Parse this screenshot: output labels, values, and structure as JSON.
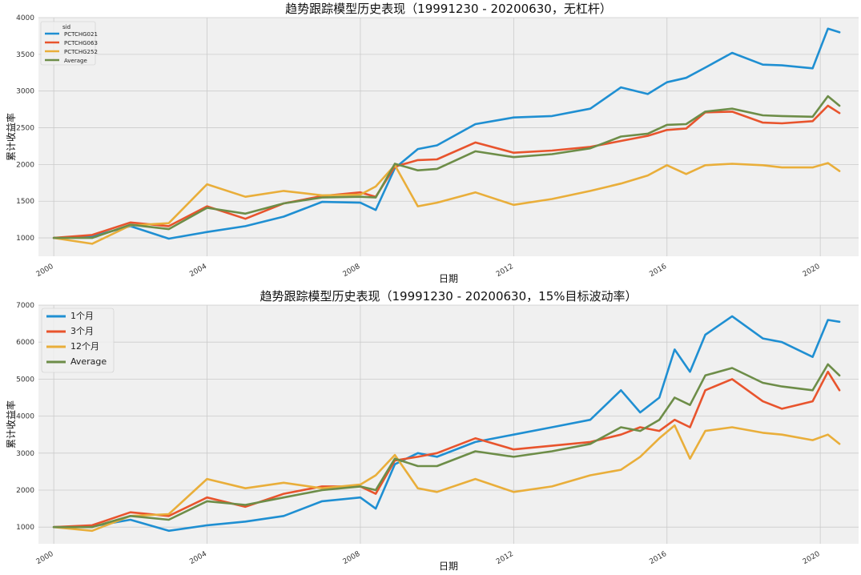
{
  "chart_data": [
    {
      "type": "line",
      "title": "趋势跟踪模型历史表现（19991230 - 20200630，无杠杆）",
      "xlabel": "日期",
      "ylabel": "累计收益率",
      "xlim": [
        1999.6,
        2021.0
      ],
      "ylim": [
        750,
        4000
      ],
      "yticks": [
        1000,
        1500,
        2000,
        2500,
        3000,
        3500,
        4000
      ],
      "xticks": [
        "2000",
        "2004",
        "2008",
        "2012",
        "2016",
        "2020"
      ],
      "grid": true,
      "legend": {
        "title": "sid",
        "placement": "top-left",
        "size": "small"
      },
      "series": [
        {
          "name": "PCTCHG021",
          "color": "#1f8fd2",
          "x": [
            2000.0,
            2001.0,
            2002.0,
            2003.0,
            2004.0,
            2005.0,
            2006.0,
            2007.0,
            2008.0,
            2008.4,
            2008.9,
            2009.5,
            2010.0,
            2011.0,
            2012.0,
            2013.0,
            2014.0,
            2014.8,
            2015.5,
            2016.0,
            2016.5,
            2017.0,
            2017.7,
            2018.5,
            2019.0,
            2019.8,
            2020.2,
            2020.5
          ],
          "values": [
            1000,
            1020,
            1160,
            990,
            1080,
            1160,
            1290,
            1490,
            1480,
            1380,
            1950,
            2210,
            2260,
            2550,
            2640,
            2660,
            2760,
            3050,
            2960,
            3120,
            3180,
            3320,
            3520,
            3360,
            3350,
            3310,
            3850,
            3800
          ]
        },
        {
          "name": "PCTCHG063",
          "color": "#e8542d",
          "x": [
            2000.0,
            2001.0,
            2002.0,
            2003.0,
            2004.0,
            2005.0,
            2006.0,
            2007.0,
            2008.0,
            2008.4,
            2008.9,
            2009.5,
            2010.0,
            2011.0,
            2012.0,
            2013.0,
            2014.0,
            2014.8,
            2015.5,
            2016.0,
            2016.5,
            2017.0,
            2017.7,
            2018.5,
            2019.0,
            2019.8,
            2020.2,
            2020.5
          ],
          "values": [
            1000,
            1040,
            1210,
            1160,
            1430,
            1260,
            1470,
            1570,
            1620,
            1560,
            1970,
            2060,
            2070,
            2300,
            2160,
            2190,
            2240,
            2320,
            2390,
            2470,
            2490,
            2710,
            2720,
            2570,
            2560,
            2590,
            2800,
            2700
          ]
        },
        {
          "name": "PCTCHG252",
          "color": "#e9ae3a",
          "x": [
            2000.0,
            2001.0,
            2002.0,
            2003.0,
            2004.0,
            2005.0,
            2006.0,
            2007.0,
            2008.0,
            2008.4,
            2008.9,
            2009.5,
            2010.0,
            2011.0,
            2012.0,
            2013.0,
            2014.0,
            2014.8,
            2015.5,
            2016.0,
            2016.5,
            2017.0,
            2017.7,
            2018.5,
            2019.0,
            2019.8,
            2020.2,
            2020.5
          ],
          "values": [
            1000,
            920,
            1170,
            1200,
            1730,
            1560,
            1640,
            1580,
            1590,
            1700,
            1990,
            1430,
            1480,
            1620,
            1450,
            1530,
            1640,
            1740,
            1850,
            1990,
            1870,
            1990,
            2010,
            1990,
            1960,
            1960,
            2020,
            1910
          ]
        },
        {
          "name": "Average",
          "color": "#6d8d48",
          "x": [
            2000.0,
            2001.0,
            2002.0,
            2003.0,
            2004.0,
            2005.0,
            2006.0,
            2007.0,
            2008.0,
            2008.4,
            2008.9,
            2009.5,
            2010.0,
            2011.0,
            2012.0,
            2013.0,
            2014.0,
            2014.8,
            2015.5,
            2016.0,
            2016.5,
            2017.0,
            2017.7,
            2018.5,
            2019.0,
            2019.8,
            2020.2,
            2020.5
          ],
          "values": [
            1000,
            1000,
            1180,
            1120,
            1410,
            1330,
            1470,
            1550,
            1560,
            1550,
            2010,
            1920,
            1940,
            2180,
            2100,
            2140,
            2220,
            2380,
            2420,
            2540,
            2550,
            2720,
            2760,
            2670,
            2660,
            2650,
            2930,
            2800
          ]
        }
      ]
    },
    {
      "type": "line",
      "title": "趋势跟踪模型历史表现（19991230 - 20200630，15%目标波动率）",
      "xlabel": "日期",
      "ylabel": "累计收益率",
      "xlim": [
        1999.6,
        2021.0
      ],
      "ylim": [
        550,
        7000
      ],
      "yticks": [
        1000,
        2000,
        3000,
        4000,
        5000,
        6000,
        7000
      ],
      "xticks": [
        "2000",
        "2004",
        "2008",
        "2012",
        "2016",
        "2020"
      ],
      "grid": true,
      "legend": {
        "title": "",
        "placement": "top-left",
        "size": "large"
      },
      "series": [
        {
          "name": "1个月",
          "color": "#1f8fd2",
          "x": [
            2000.0,
            2001.0,
            2002.0,
            2003.0,
            2004.0,
            2005.0,
            2006.0,
            2007.0,
            2008.0,
            2008.4,
            2008.9,
            2009.5,
            2010.0,
            2011.0,
            2012.0,
            2013.0,
            2014.0,
            2014.8,
            2015.3,
            2015.8,
            2016.2,
            2016.6,
            2017.0,
            2017.7,
            2018.5,
            2019.0,
            2019.8,
            2020.2,
            2020.5
          ],
          "values": [
            1000,
            1020,
            1200,
            900,
            1050,
            1150,
            1300,
            1700,
            1800,
            1500,
            2700,
            3000,
            2900,
            3300,
            3500,
            3700,
            3900,
            4700,
            4100,
            4500,
            5800,
            5200,
            6200,
            6700,
            6100,
            6000,
            5600,
            6600,
            6550
          ]
        },
        {
          "name": "3个月",
          "color": "#e8542d",
          "x": [
            2000.0,
            2001.0,
            2002.0,
            2003.0,
            2004.0,
            2005.0,
            2006.0,
            2007.0,
            2008.0,
            2008.4,
            2008.9,
            2009.5,
            2010.0,
            2011.0,
            2012.0,
            2013.0,
            2014.0,
            2014.8,
            2015.3,
            2015.8,
            2016.2,
            2016.6,
            2017.0,
            2017.7,
            2018.5,
            2019.0,
            2019.8,
            2020.2,
            2020.5
          ],
          "values": [
            1000,
            1050,
            1400,
            1300,
            1800,
            1550,
            1900,
            2100,
            2100,
            1900,
            2800,
            2900,
            3000,
            3400,
            3100,
            3200,
            3300,
            3500,
            3700,
            3600,
            3900,
            3700,
            4700,
            5000,
            4400,
            4200,
            4400,
            5200,
            4700
          ]
        },
        {
          "name": "12个月",
          "color": "#e9ae3a",
          "x": [
            2000.0,
            2001.0,
            2002.0,
            2003.0,
            2004.0,
            2005.0,
            2006.0,
            2007.0,
            2008.0,
            2008.4,
            2008.9,
            2009.5,
            2010.0,
            2011.0,
            2012.0,
            2013.0,
            2014.0,
            2014.8,
            2015.3,
            2015.8,
            2016.2,
            2016.6,
            2017.0,
            2017.7,
            2018.5,
            2019.0,
            2019.8,
            2020.2,
            2020.5
          ],
          "values": [
            1000,
            900,
            1300,
            1350,
            2300,
            2050,
            2200,
            2050,
            2150,
            2400,
            2950,
            2050,
            1950,
            2300,
            1950,
            2100,
            2400,
            2550,
            2900,
            3400,
            3750,
            2850,
            3600,
            3700,
            3550,
            3500,
            3350,
            3500,
            3250
          ]
        },
        {
          "name": "Average",
          "color": "#6d8d48",
          "x": [
            2000.0,
            2001.0,
            2002.0,
            2003.0,
            2004.0,
            2005.0,
            2006.0,
            2007.0,
            2008.0,
            2008.4,
            2008.9,
            2009.5,
            2010.0,
            2011.0,
            2012.0,
            2013.0,
            2014.0,
            2014.8,
            2015.3,
            2015.8,
            2016.2,
            2016.6,
            2017.0,
            2017.7,
            2018.5,
            2019.0,
            2019.8,
            2020.2,
            2020.5
          ],
          "values": [
            1000,
            1000,
            1300,
            1200,
            1700,
            1600,
            1800,
            2000,
            2100,
            2000,
            2850,
            2650,
            2650,
            3050,
            2900,
            3050,
            3250,
            3700,
            3600,
            3900,
            4500,
            4300,
            5100,
            5300,
            4900,
            4800,
            4700,
            5400,
            5100
          ]
        }
      ]
    }
  ]
}
